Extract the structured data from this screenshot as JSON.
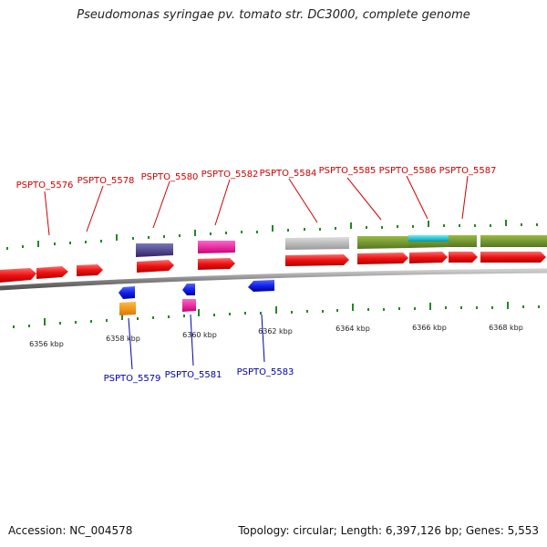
{
  "title": "Pseudomonas syringae pv. tomato str. DC3000, complete genome",
  "footer": {
    "accession": "Accession: NC_004578",
    "summary": "Topology: circular; Length: 6,397,126 bp; Genes: 5,553"
  },
  "colors": {
    "forward_gene": "#ee1111",
    "reverse_gene": "#1122ee",
    "tick": "#228822",
    "backbone": "#888888",
    "label_forward": "#cc0000",
    "label_reverse": "#0000aa"
  },
  "top_labels": [
    "PSPTO_5576",
    "PSPTO_5578",
    "PSPTO_5580",
    "PSPTO_5582",
    "PSPTO_5584",
    "PSPTO_5585",
    "PSPTO_5586",
    "PSPTO_5587"
  ],
  "bottom_labels": [
    "PSPTO_5579",
    "PSPTO_5581",
    "PSPTO_5583"
  ],
  "kbp_labels": [
    "6356 kbp",
    "6358 kbp",
    "6360 kbp",
    "6362 kbp",
    "6364 kbp",
    "6366 kbp",
    "6368 kbp"
  ]
}
